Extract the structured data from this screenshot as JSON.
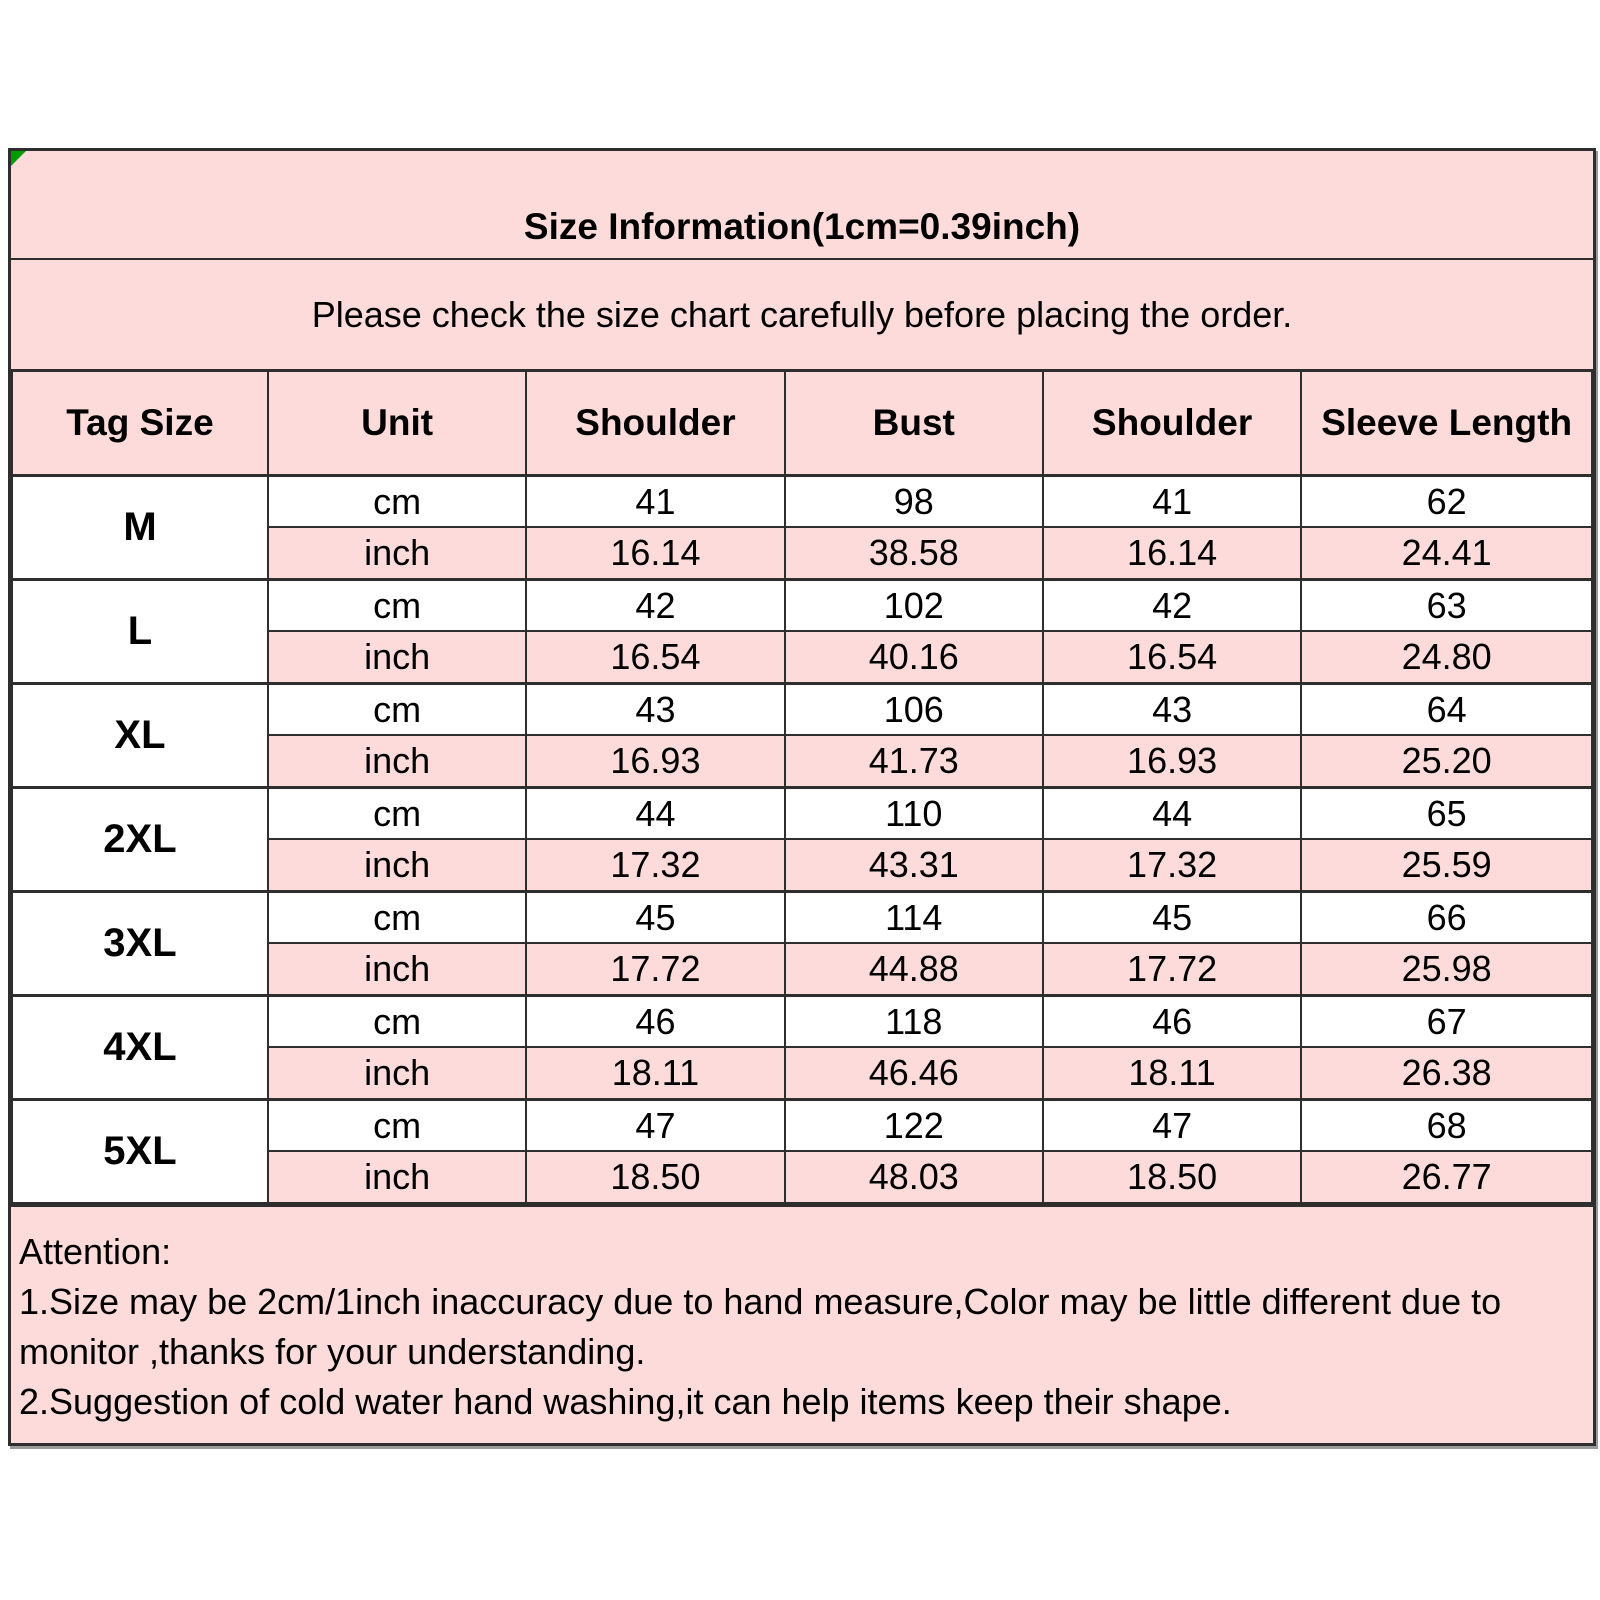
{
  "header": {
    "title": "Size Information(1cm=0.39inch)",
    "subtitle": "Please check the size chart carefully before placing the order."
  },
  "table": {
    "headers": [
      "Tag Size",
      "Unit",
      "Shoulder",
      "Bust",
      "Shoulder",
      "Sleeve Length"
    ],
    "unit_cm": "cm",
    "unit_inch": "inch",
    "rows": [
      {
        "tag": "M",
        "cm": [
          "41",
          "98",
          "41",
          "62"
        ],
        "inch": [
          "16.14",
          "38.58",
          "16.14",
          "24.41"
        ]
      },
      {
        "tag": "L",
        "cm": [
          "42",
          "102",
          "42",
          "63"
        ],
        "inch": [
          "16.54",
          "40.16",
          "16.54",
          "24.80"
        ]
      },
      {
        "tag": "XL",
        "cm": [
          "43",
          "106",
          "43",
          "64"
        ],
        "inch": [
          "16.93",
          "41.73",
          "16.93",
          "25.20"
        ]
      },
      {
        "tag": "2XL",
        "cm": [
          "44",
          "110",
          "44",
          "65"
        ],
        "inch": [
          "17.32",
          "43.31",
          "17.32",
          "25.59"
        ]
      },
      {
        "tag": "3XL",
        "cm": [
          "45",
          "114",
          "45",
          "66"
        ],
        "inch": [
          "17.72",
          "44.88",
          "17.72",
          "25.98"
        ]
      },
      {
        "tag": "4XL",
        "cm": [
          "46",
          "118",
          "46",
          "67"
        ],
        "inch": [
          "18.11",
          "46.46",
          "18.11",
          "26.38"
        ]
      },
      {
        "tag": "5XL",
        "cm": [
          "47",
          "122",
          "47",
          "68"
        ],
        "inch": [
          "18.50",
          "48.03",
          "18.50",
          "26.77"
        ]
      }
    ]
  },
  "attention": {
    "heading": "Attention:",
    "lines": [
      "1.Size may be 2cm/1inch inaccuracy due to hand measure,Color may be little different due to",
      "monitor ,thanks for your understanding.",
      "2.Suggestion of cold water hand washing,it can help items keep their shape."
    ]
  },
  "colors": {
    "pink": "#fcdbda",
    "border": "#2e2e2e",
    "corner_green": "#009b00"
  },
  "chart_data": {
    "type": "table",
    "title": "Size Information(1cm=0.39inch)",
    "subtitle": "Please check the size chart carefully before placing the order.",
    "columns": [
      "Tag Size",
      "Unit",
      "Shoulder",
      "Bust",
      "Shoulder",
      "Sleeve Length"
    ],
    "rows": [
      [
        "M",
        "cm",
        41,
        98,
        41,
        62
      ],
      [
        "M",
        "inch",
        16.14,
        38.58,
        16.14,
        24.41
      ],
      [
        "L",
        "cm",
        42,
        102,
        42,
        63
      ],
      [
        "L",
        "inch",
        16.54,
        40.16,
        16.54,
        24.8
      ],
      [
        "XL",
        "cm",
        43,
        106,
        43,
        64
      ],
      [
        "XL",
        "inch",
        16.93,
        41.73,
        16.93,
        25.2
      ],
      [
        "2XL",
        "cm",
        44,
        110,
        44,
        65
      ],
      [
        "2XL",
        "inch",
        17.32,
        43.31,
        17.32,
        25.59
      ],
      [
        "3XL",
        "cm",
        45,
        114,
        45,
        66
      ],
      [
        "3XL",
        "inch",
        17.72,
        44.88,
        17.72,
        25.98
      ],
      [
        "4XL",
        "cm",
        46,
        118,
        46,
        67
      ],
      [
        "4XL",
        "inch",
        18.11,
        46.46,
        18.11,
        26.38
      ],
      [
        "5XL",
        "cm",
        47,
        122,
        47,
        68
      ],
      [
        "5XL",
        "inch",
        18.5,
        48.03,
        18.5,
        26.77
      ]
    ],
    "notes": [
      "Attention:",
      "1.Size may be 2cm/1inch inaccuracy due to hand measure,Color may be little different due to monitor ,thanks for your understanding.",
      "2.Suggestion of cold water hand washing,it can help items keep their shape."
    ]
  }
}
